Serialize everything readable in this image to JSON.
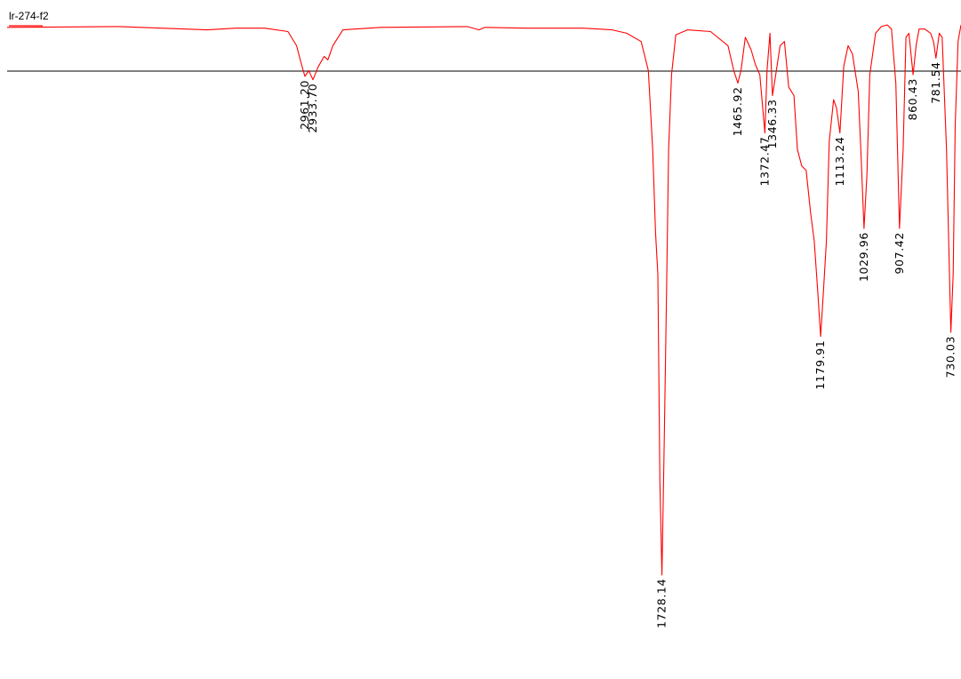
{
  "chart_data": {
    "type": "line",
    "title": "",
    "xlabel": "",
    "ylabel": "",
    "legend": {
      "label": "lr-274-f2",
      "placement": "top-left"
    },
    "axis_reversed": true,
    "series": [
      {
        "name": "lr-274-f2",
        "color": "#ff0000",
        "points": [
          [
            3990,
            0.03
          ],
          [
            3600,
            0.02
          ],
          [
            3300,
            0.06
          ],
          [
            3200,
            0.04
          ],
          [
            3100,
            0.04
          ],
          [
            3020,
            0.08
          ],
          [
            2990,
            0.25
          ],
          [
            2975,
            0.45
          ],
          [
            2961.2,
            0.62
          ],
          [
            2948,
            0.55
          ],
          [
            2933.7,
            0.66
          ],
          [
            2915,
            0.5
          ],
          [
            2895,
            0.38
          ],
          [
            2882,
            0.42
          ],
          [
            2865,
            0.25
          ],
          [
            2830,
            0.06
          ],
          [
            2700,
            0.03
          ],
          [
            2400,
            0.02
          ],
          [
            2360,
            0.06
          ],
          [
            2340,
            0.03
          ],
          [
            2200,
            0.04
          ],
          [
            2000,
            0.04
          ],
          [
            1900,
            0.06
          ],
          [
            1850,
            0.1
          ],
          [
            1800,
            0.2
          ],
          [
            1775,
            0.55
          ],
          [
            1760,
            1.5
          ],
          [
            1750,
            2.5
          ],
          [
            1742,
            3.0
          ],
          [
            1735,
            5.5
          ],
          [
            1728.14,
            6.62
          ],
          [
            1720,
            5.0
          ],
          [
            1712,
            3.2
          ],
          [
            1705,
            1.5
          ],
          [
            1695,
            0.6
          ],
          [
            1680,
            0.12
          ],
          [
            1640,
            0.06
          ],
          [
            1560,
            0.08
          ],
          [
            1500,
            0.25
          ],
          [
            1480,
            0.55
          ],
          [
            1465.92,
            0.7
          ],
          [
            1455,
            0.55
          ],
          [
            1440,
            0.15
          ],
          [
            1420,
            0.3
          ],
          [
            1405,
            0.48
          ],
          [
            1390,
            0.6
          ],
          [
            1372.47,
            1.3
          ],
          [
            1365,
            0.55
          ],
          [
            1355,
            0.1
          ],
          [
            1346.33,
            0.85
          ],
          [
            1335,
            0.6
          ],
          [
            1320,
            0.25
          ],
          [
            1305,
            0.2
          ],
          [
            1290,
            0.75
          ],
          [
            1272,
            0.85
          ],
          [
            1260,
            1.5
          ],
          [
            1245,
            1.7
          ],
          [
            1230,
            1.75
          ],
          [
            1215,
            2.25
          ],
          [
            1202,
            2.6
          ],
          [
            1190,
            3.2
          ],
          [
            1179.91,
            3.75
          ],
          [
            1170,
            3.2
          ],
          [
            1160,
            2.6
          ],
          [
            1150,
            1.4
          ],
          [
            1135,
            0.9
          ],
          [
            1125,
            1.0
          ],
          [
            1113.24,
            1.3
          ],
          [
            1100,
            0.5
          ],
          [
            1085,
            0.25
          ],
          [
            1070,
            0.35
          ],
          [
            1050,
            0.8
          ],
          [
            1040,
            1.6
          ],
          [
            1029.96,
            2.45
          ],
          [
            1020,
            1.8
          ],
          [
            1010,
            0.6
          ],
          [
            990,
            0.1
          ],
          [
            970,
            0.02
          ],
          [
            950,
            0.0
          ],
          [
            935,
            0.05
          ],
          [
            920,
            0.7
          ],
          [
            907.42,
            2.45
          ],
          [
            895,
            1.5
          ],
          [
            885,
            0.15
          ],
          [
            875,
            0.1
          ],
          [
            860.43,
            0.6
          ],
          [
            850,
            0.25
          ],
          [
            840,
            0.05
          ],
          [
            820,
            0.05
          ],
          [
            800,
            0.1
          ],
          [
            790,
            0.2
          ],
          [
            781.54,
            0.4
          ],
          [
            770,
            0.1
          ],
          [
            760,
            0.15
          ],
          [
            745,
            1.5
          ],
          [
            730.03,
            3.7
          ],
          [
            722,
            3.0
          ],
          [
            715,
            1.2
          ],
          [
            705,
            0.2
          ],
          [
            695,
            0.0
          ]
        ]
      }
    ],
    "peaks": [
      {
        "label": "2961.20",
        "x": 2961.2
      },
      {
        "label": "2933.70",
        "x": 2933.7
      },
      {
        "label": "1728.14",
        "x": 1728.14
      },
      {
        "label": "1465.92",
        "x": 1465.92
      },
      {
        "label": "1372.47",
        "x": 1372.47
      },
      {
        "label": "1346.33",
        "x": 1346.33
      },
      {
        "label": "1179.91",
        "x": 1179.91
      },
      {
        "label": "1113.24",
        "x": 1113.24
      },
      {
        "label": "1029.96",
        "x": 1029.96
      },
      {
        "label": "907.42",
        "x": 907.42
      },
      {
        "label": "860.43",
        "x": 860.43
      },
      {
        "label": "781.54",
        "x": 781.54
      },
      {
        "label": "730.03",
        "x": 730.03
      }
    ]
  }
}
